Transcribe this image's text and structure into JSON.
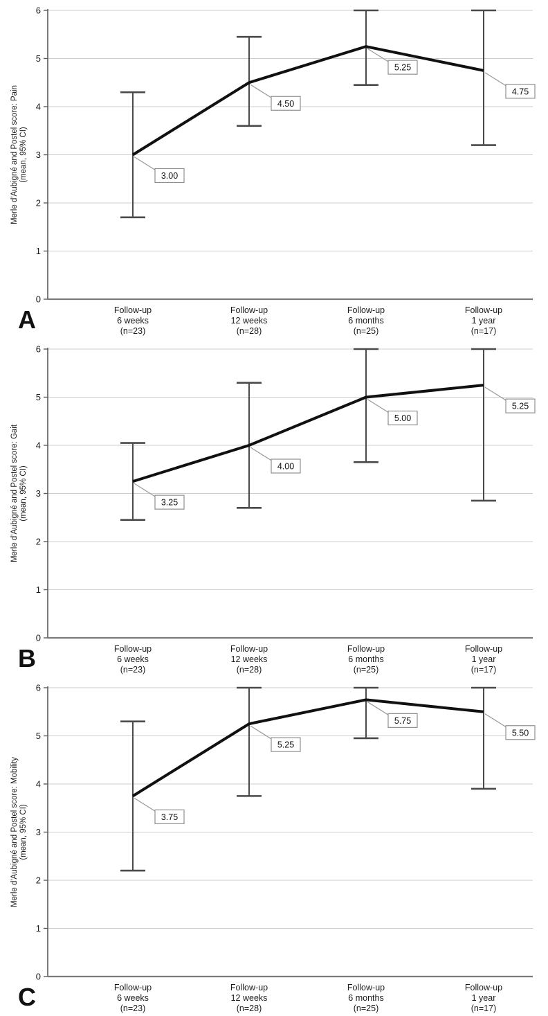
{
  "figure": {
    "panel_letters": [
      "A",
      "B",
      "C"
    ]
  },
  "chart_data": [
    {
      "type": "line",
      "panel": "A",
      "title": "",
      "ylabel_line1": "Merle d'Aubigné and Postel score: Pain",
      "ylabel_line2": "(mean, 95% CI)",
      "xlabel": "",
      "ylim": [
        0,
        6
      ],
      "yticks": [
        0,
        1,
        2,
        3,
        4,
        5,
        6
      ],
      "grid": true,
      "legend": "none",
      "categories": [
        [
          "Follow-up",
          "6 weeks",
          "(n=23)"
        ],
        [
          "Follow-up",
          "12 weeks",
          "(n=28)"
        ],
        [
          "Follow-up",
          "6 months",
          "(n=25)"
        ],
        [
          "Follow-up",
          "1 year",
          "(n=17)"
        ]
      ],
      "values": [
        3.0,
        4.5,
        5.25,
        4.75
      ],
      "value_labels": [
        "3.00",
        "4.50",
        "5.25",
        "4.75"
      ],
      "ci_lower": [
        1.7,
        3.6,
        4.45,
        3.2
      ],
      "ci_upper": [
        4.3,
        5.45,
        6.0,
        6.0
      ]
    },
    {
      "type": "line",
      "panel": "B",
      "title": "",
      "ylabel_line1": "Merle d'Aubigné and Postel score: Gait",
      "ylabel_line2": "(mean, 95% CI)",
      "xlabel": "",
      "ylim": [
        0,
        6
      ],
      "yticks": [
        0,
        1,
        2,
        3,
        4,
        5,
        6
      ],
      "grid": true,
      "legend": "none",
      "categories": [
        [
          "Follow-up",
          "6 weeks",
          "(n=23)"
        ],
        [
          "Follow-up",
          "12 weeks",
          "(n=28)"
        ],
        [
          "Follow-up",
          "6 months",
          "(n=25)"
        ],
        [
          "Follow-up",
          "1 year",
          "(n=17)"
        ]
      ],
      "values": [
        3.25,
        4.0,
        5.0,
        5.25
      ],
      "value_labels": [
        "3.25",
        "4.00",
        "5.00",
        "5.25"
      ],
      "ci_lower": [
        2.45,
        2.7,
        3.65,
        2.85
      ],
      "ci_upper": [
        4.05,
        5.3,
        6.0,
        6.0
      ]
    },
    {
      "type": "line",
      "panel": "C",
      "title": "",
      "ylabel_line1": "Merle d'Aubigné and Postel score: Mobility",
      "ylabel_line2": "(mean, 95% CI)",
      "xlabel": "",
      "ylim": [
        0,
        6
      ],
      "yticks": [
        0,
        1,
        2,
        3,
        4,
        5,
        6
      ],
      "grid": true,
      "legend": "none",
      "categories": [
        [
          "Follow-up",
          "6 weeks",
          "(n=23)"
        ],
        [
          "Follow-up",
          "12 weeks",
          "(n=28)"
        ],
        [
          "Follow-up",
          "6 months",
          "(n=25)"
        ],
        [
          "Follow-up",
          "1 year",
          "(n=17)"
        ]
      ],
      "values": [
        3.75,
        5.25,
        5.75,
        5.5
      ],
      "value_labels": [
        "3.75",
        "5.25",
        "5.75",
        "5.50"
      ],
      "ci_lower": [
        2.2,
        3.75,
        4.95,
        3.9
      ],
      "ci_upper": [
        5.3,
        6.0,
        6.0,
        6.0
      ]
    }
  ],
  "style": {
    "series_color": "#111111",
    "errorbar_color": "#4a4a4a",
    "grid_color": "#cccccc",
    "axis_color": "#7a7a7a",
    "tick_text_color": "#1a1a1a",
    "label_box_border": "#8f8f8f",
    "label_box_fill": "#ffffff",
    "leader_color": "#9a9a9a",
    "background": "#ffffff"
  }
}
